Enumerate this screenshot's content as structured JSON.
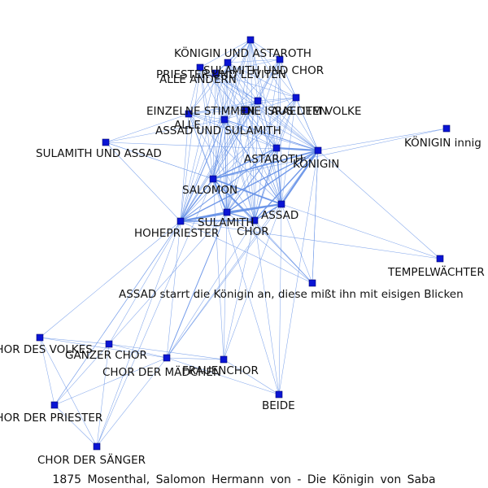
{
  "caption": "1875 Mosenthal, Salomon Hermann von - Die Königin von Saba",
  "colors": {
    "edge": "#6a95e8",
    "node": "#0a14d4",
    "text": "#111111"
  },
  "nodes": [
    {
      "id": "n_top",
      "label": ""
    },
    {
      "id": "n_kag",
      "label": "KÖNIGIN UND ASTAROTH"
    },
    {
      "id": "n_suc",
      "label": "SULAMITH UND CHOR"
    },
    {
      "id": "n_aa",
      "label": "ALLE ANDERN"
    },
    {
      "id": "n_pul",
      "label": "PRIESTER UND LEVITEN"
    },
    {
      "id": "n_dai",
      "label": "DIE ISRAELITEN"
    },
    {
      "id": "n_avk",
      "label": "AUS DEM VOLKE"
    },
    {
      "id": "n_esm",
      "label": "EINZELNE STIMMEN"
    },
    {
      "id": "n_alle",
      "label": "ALLE"
    },
    {
      "id": "n_aus",
      "label": "ASSAD UND SULAMITH"
    },
    {
      "id": "n_sua",
      "label": "SULAMITH UND ASSAD"
    },
    {
      "id": "n_kin",
      "label": "KÖNIGIN innig"
    },
    {
      "id": "n_ast",
      "label": "ASTAROTH"
    },
    {
      "id": "n_kon",
      "label": "KÖNIGIN"
    },
    {
      "id": "n_sal",
      "label": "SALOMON"
    },
    {
      "id": "n_ass",
      "label": "ASSAD"
    },
    {
      "id": "n_sul",
      "label": "SULAMITH"
    },
    {
      "id": "n_cho",
      "label": "CHOR"
    },
    {
      "id": "n_hoh",
      "label": "HOHEPRIESTER"
    },
    {
      "id": "n_tmp",
      "label": "TEMPELWÄCHTER"
    },
    {
      "id": "n_asa",
      "label": "ASSAD starrt die Königin an, diese mißt ihn mit eisigen Blicken"
    },
    {
      "id": "n_cdv",
      "label": "CHOR DES VOLKES"
    },
    {
      "id": "n_gch",
      "label": "GANZER CHOR"
    },
    {
      "id": "n_cdm",
      "label": "CHOR DER MÄDCHEN"
    },
    {
      "id": "n_fch",
      "label": "FRAUENCHOR"
    },
    {
      "id": "n_bei",
      "label": "BEIDE"
    },
    {
      "id": "n_cdp",
      "label": "CHOR DER PRIESTER"
    },
    {
      "id": "n_cds",
      "label": "CHOR DER SÄNGER"
    }
  ],
  "edges": [
    [
      "n_hoh",
      "n_sul",
      3
    ],
    [
      "n_hoh",
      "n_ass",
      2.5
    ],
    [
      "n_hoh",
      "n_cho",
      2.5
    ],
    [
      "n_hoh",
      "n_sal",
      2
    ],
    [
      "n_hoh",
      "n_kon",
      2
    ],
    [
      "n_hoh",
      "n_ast",
      1.5
    ],
    [
      "n_hoh",
      "n_alle",
      1.5
    ],
    [
      "n_hoh",
      "n_aus",
      1
    ],
    [
      "n_hoh",
      "n_esm",
      1
    ],
    [
      "n_hoh",
      "n_avk",
      1
    ],
    [
      "n_hoh",
      "n_dai",
      1
    ],
    [
      "n_hoh",
      "n_pul",
      1
    ],
    [
      "n_hoh",
      "n_aa",
      1
    ],
    [
      "n_hoh",
      "n_top",
      1
    ],
    [
      "n_hoh",
      "n_kag",
      1
    ],
    [
      "n_hoh",
      "n_suc",
      1
    ],
    [
      "n_hoh",
      "n_sua",
      1
    ],
    [
      "n_hoh",
      "n_asa",
      1
    ],
    [
      "n_hoh",
      "n_cdv",
      1
    ],
    [
      "n_hoh",
      "n_gch",
      1
    ],
    [
      "n_hoh",
      "n_cdm",
      1
    ],
    [
      "n_hoh",
      "n_cdp",
      1
    ],
    [
      "n_hoh",
      "n_cds",
      1
    ],
    [
      "n_hoh",
      "n_tmp",
      1
    ],
    [
      "n_sul",
      "n_ass",
      3
    ],
    [
      "n_sul",
      "n_sal",
      2.5
    ],
    [
      "n_sul",
      "n_cho",
      2
    ],
    [
      "n_sul",
      "n_kon",
      2
    ],
    [
      "n_sul",
      "n_ast",
      1.5
    ],
    [
      "n_sul",
      "n_alle",
      1.5
    ],
    [
      "n_sul",
      "n_aus",
      1
    ],
    [
      "n_sul",
      "n_avk",
      1
    ],
    [
      "n_sul",
      "n_dai",
      1
    ],
    [
      "n_sul",
      "n_esm",
      1
    ],
    [
      "n_sul",
      "n_pul",
      1
    ],
    [
      "n_sul",
      "n_aa",
      1
    ],
    [
      "n_sul",
      "n_top",
      1
    ],
    [
      "n_sul",
      "n_kag",
      1
    ],
    [
      "n_sul",
      "n_suc",
      1
    ],
    [
      "n_sul",
      "n_asa",
      1
    ],
    [
      "n_sul",
      "n_cdm",
      1.5
    ],
    [
      "n_sul",
      "n_fch",
      1
    ],
    [
      "n_sul",
      "n_gch",
      1
    ],
    [
      "n_ass",
      "n_kon",
      3
    ],
    [
      "n_ass",
      "n_sal",
      2.5
    ],
    [
      "n_ass",
      "n_ast",
      2
    ],
    [
      "n_ass",
      "n_cho",
      2
    ],
    [
      "n_ass",
      "n_alle",
      1.5
    ],
    [
      "n_ass",
      "n_aus",
      1
    ],
    [
      "n_ass",
      "n_avk",
      1
    ],
    [
      "n_ass",
      "n_dai",
      1
    ],
    [
      "n_ass",
      "n_esm",
      1
    ],
    [
      "n_ass",
      "n_pul",
      1
    ],
    [
      "n_ass",
      "n_top",
      1
    ],
    [
      "n_ass",
      "n_kag",
      1
    ],
    [
      "n_ass",
      "n_suc",
      1
    ],
    [
      "n_ass",
      "n_asa",
      1
    ],
    [
      "n_ass",
      "n_fch",
      1
    ],
    [
      "n_ass",
      "n_bei",
      1
    ],
    [
      "n_ass",
      "n_cdm",
      1
    ],
    [
      "n_ass",
      "n_tmp",
      1
    ],
    [
      "n_kon",
      "n_ast",
      3
    ],
    [
      "n_kon",
      "n_sal",
      2.5
    ],
    [
      "n_kon",
      "n_cho",
      2
    ],
    [
      "n_kon",
      "n_alle",
      1.5
    ],
    [
      "n_kon",
      "n_aus",
      1
    ],
    [
      "n_kon",
      "n_avk",
      1
    ],
    [
      "n_kon",
      "n_dai",
      1
    ],
    [
      "n_kon",
      "n_esm",
      1
    ],
    [
      "n_kon",
      "n_pul",
      1
    ],
    [
      "n_kon",
      "n_aa",
      1
    ],
    [
      "n_kon",
      "n_top",
      1
    ],
    [
      "n_kon",
      "n_kag",
      1
    ],
    [
      "n_kon",
      "n_suc",
      1
    ],
    [
      "n_kon",
      "n_kin",
      1
    ],
    [
      "n_kon",
      "n_tmp",
      1
    ],
    [
      "n_kon",
      "n_asa",
      1
    ],
    [
      "n_kon",
      "n_sua",
      1
    ],
    [
      "n_kon",
      "n_cdm",
      1
    ],
    [
      "n_sal",
      "n_ast",
      2
    ],
    [
      "n_sal",
      "n_cho",
      2
    ],
    [
      "n_sal",
      "n_alle",
      1.5
    ],
    [
      "n_sal",
      "n_aus",
      1
    ],
    [
      "n_sal",
      "n_esm",
      1
    ],
    [
      "n_sal",
      "n_avk",
      1
    ],
    [
      "n_sal",
      "n_dai",
      1
    ],
    [
      "n_sal",
      "n_pul",
      1
    ],
    [
      "n_sal",
      "n_aa",
      1
    ],
    [
      "n_sal",
      "n_top",
      1
    ],
    [
      "n_sal",
      "n_kag",
      1
    ],
    [
      "n_sal",
      "n_suc",
      1
    ],
    [
      "n_sal",
      "n_sua",
      1
    ],
    [
      "n_sal",
      "n_asa",
      1
    ],
    [
      "n_sal",
      "n_kin",
      1
    ],
    [
      "n_ast",
      "n_cho",
      1.5
    ],
    [
      "n_ast",
      "n_alle",
      1
    ],
    [
      "n_ast",
      "n_esm",
      1
    ],
    [
      "n_ast",
      "n_avk",
      1
    ],
    [
      "n_ast",
      "n_dai",
      1
    ],
    [
      "n_ast",
      "n_pul",
      1
    ],
    [
      "n_ast",
      "n_aa",
      1
    ],
    [
      "n_ast",
      "n_top",
      1
    ],
    [
      "n_ast",
      "n_kag",
      1
    ],
    [
      "n_ast",
      "n_suc",
      1
    ],
    [
      "n_ast",
      "n_aus",
      1
    ],
    [
      "n_cho",
      "n_alle",
      1
    ],
    [
      "n_cho",
      "n_esm",
      1
    ],
    [
      "n_cho",
      "n_avk",
      1
    ],
    [
      "n_cho",
      "n_dai",
      1
    ],
    [
      "n_cho",
      "n_pul",
      1
    ],
    [
      "n_cho",
      "n_top",
      1
    ],
    [
      "n_cho",
      "n_suc",
      1
    ],
    [
      "n_cho",
      "n_kag",
      1
    ],
    [
      "n_cho",
      "n_asa",
      1
    ],
    [
      "n_cho",
      "n_cdm",
      1
    ],
    [
      "n_cho",
      "n_fch",
      1
    ],
    [
      "n_cho",
      "n_bei",
      1
    ],
    [
      "n_cho",
      "n_aus",
      1
    ],
    [
      "n_alle",
      "n_esm",
      1
    ],
    [
      "n_alle",
      "n_avk",
      1
    ],
    [
      "n_alle",
      "n_dai",
      1
    ],
    [
      "n_alle",
      "n_pul",
      1
    ],
    [
      "n_alle",
      "n_top",
      1
    ],
    [
      "n_alle",
      "n_aa",
      1
    ],
    [
      "n_alle",
      "n_suc",
      1
    ],
    [
      "n_alle",
      "n_kag",
      1
    ],
    [
      "n_alle",
      "n_sua",
      1
    ],
    [
      "n_top",
      "n_kag",
      1
    ],
    [
      "n_top",
      "n_suc",
      1
    ],
    [
      "n_top",
      "n_aa",
      1
    ],
    [
      "n_top",
      "n_pul",
      1
    ],
    [
      "n_top",
      "n_dai",
      1
    ],
    [
      "n_top",
      "n_avk",
      1
    ],
    [
      "n_top",
      "n_esm",
      1
    ],
    [
      "n_top",
      "n_aus",
      1
    ],
    [
      "n_kag",
      "n_suc",
      1
    ],
    [
      "n_kag",
      "n_pul",
      1
    ],
    [
      "n_kag",
      "n_dai",
      1
    ],
    [
      "n_kag",
      "n_avk",
      1
    ],
    [
      "n_suc",
      "n_pul",
      1
    ],
    [
      "n_suc",
      "n_dai",
      1
    ],
    [
      "n_suc",
      "n_avk",
      1
    ],
    [
      "n_suc",
      "n_aus",
      1
    ],
    [
      "n_pul",
      "n_dai",
      1
    ],
    [
      "n_pul",
      "n_avk",
      1
    ],
    [
      "n_pul",
      "n_esm",
      1
    ],
    [
      "n_aa",
      "n_dai",
      1
    ],
    [
      "n_aa",
      "n_esm",
      1
    ],
    [
      "n_dai",
      "n_avk",
      1
    ],
    [
      "n_dai",
      "n_esm",
      1
    ],
    [
      "n_avk",
      "n_esm",
      1
    ],
    [
      "n_esm",
      "n_aus",
      1
    ],
    [
      "n_aus",
      "n_dai",
      1
    ],
    [
      "n_sua",
      "n_sal",
      1
    ],
    [
      "n_sua",
      "n_esm",
      1
    ],
    [
      "n_asa",
      "n_kon",
      1
    ],
    [
      "n_asa",
      "n_sal",
      1
    ],
    [
      "n_cdv",
      "n_gch",
      1
    ],
    [
      "n_cdv",
      "n_cdm",
      1
    ],
    [
      "n_cdv",
      "n_cdp",
      1
    ],
    [
      "n_cdv",
      "n_cds",
      1
    ],
    [
      "n_gch",
      "n_cdm",
      1
    ],
    [
      "n_gch",
      "n_cdp",
      1
    ],
    [
      "n_gch",
      "n_cds",
      1
    ],
    [
      "n_gch",
      "n_fch",
      1
    ],
    [
      "n_cdm",
      "n_fch",
      1
    ],
    [
      "n_cdm",
      "n_cdp",
      1
    ],
    [
      "n_cdm",
      "n_cds",
      1
    ],
    [
      "n_cdm",
      "n_bei",
      1
    ],
    [
      "n_fch",
      "n_bei",
      1
    ],
    [
      "n_fch",
      "n_sal",
      1
    ],
    [
      "n_bei",
      "n_sal",
      1
    ],
    [
      "n_bei",
      "n_kon",
      1
    ],
    [
      "n_cdp",
      "n_cds",
      1
    ],
    [
      "n_cdp",
      "n_hoh",
      1
    ],
    [
      "n_cds",
      "n_sal",
      1
    ]
  ]
}
